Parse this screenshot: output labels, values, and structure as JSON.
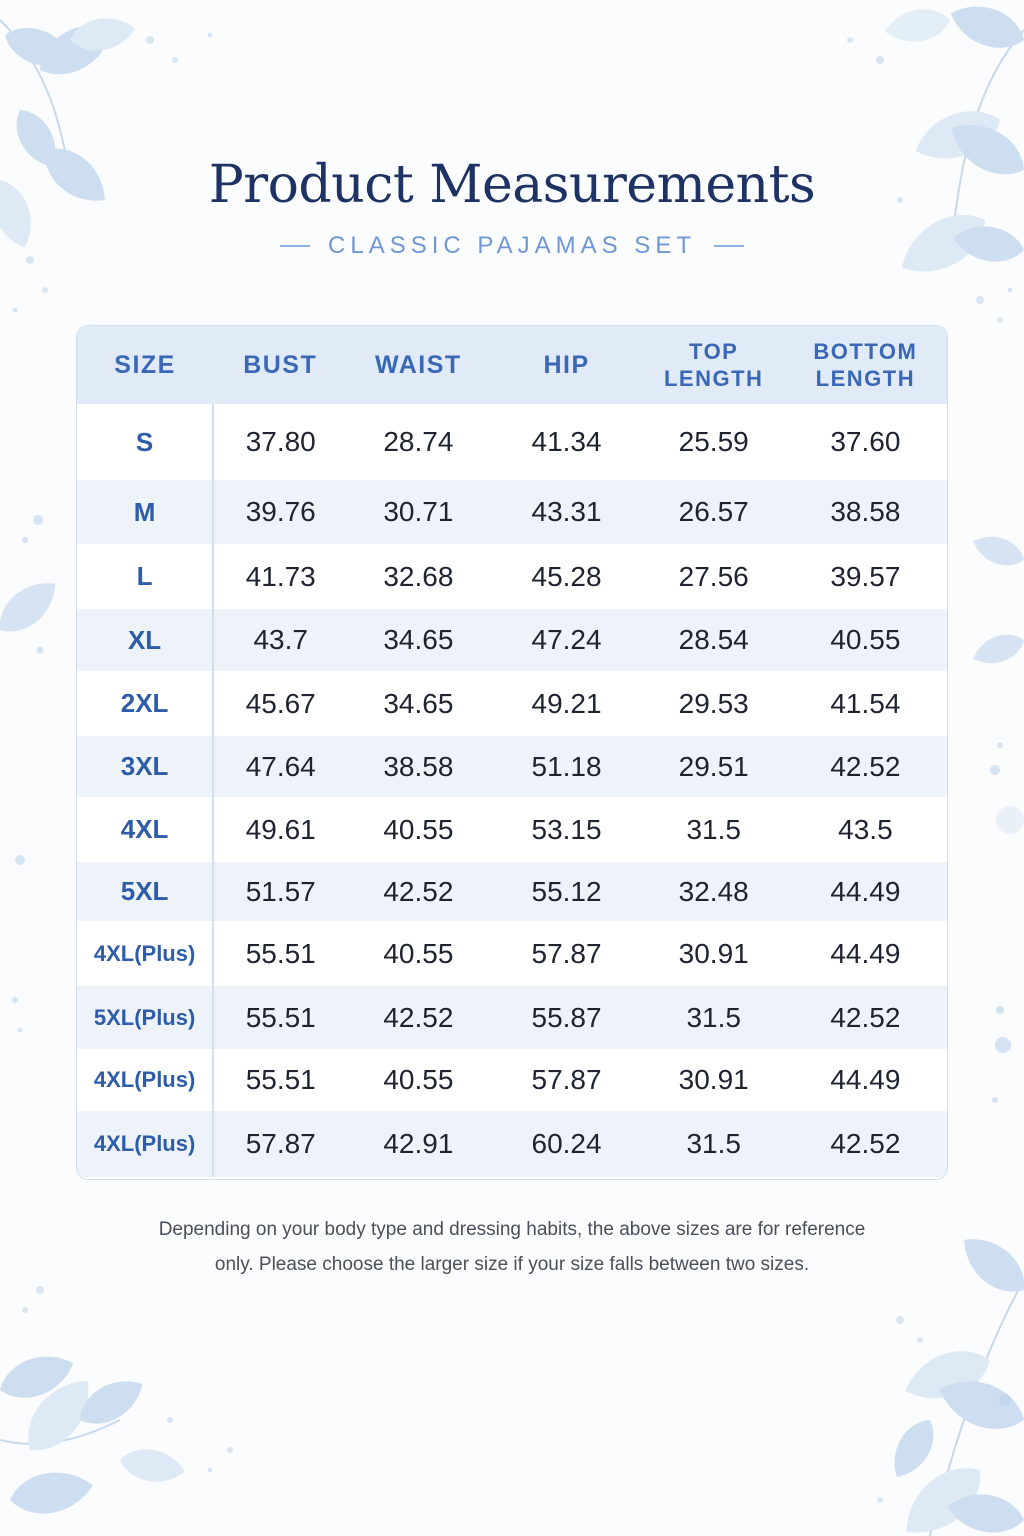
{
  "title": "Product Measurements",
  "subtitle": "CLASSIC PAJAMAS SET",
  "table": {
    "headers": {
      "size": "SIZE",
      "bust": "BUST",
      "waist": "WAIST",
      "hip": "HIP",
      "top_length_1": "TOP",
      "top_length_2": "LENGTH",
      "bottom_length_1": "BOTTOM",
      "bottom_length_2": "LENGTH"
    },
    "rows": [
      {
        "size": "S",
        "bust": "37.80",
        "waist": "28.74",
        "hip": "41.34",
        "top_length": "25.59",
        "bottom_length": "37.60"
      },
      {
        "size": "M",
        "bust": "39.76",
        "waist": "30.71",
        "hip": "43.31",
        "top_length": "26.57",
        "bottom_length": "38.58"
      },
      {
        "size": "L",
        "bust": "41.73",
        "waist": "32.68",
        "hip": "45.28",
        "top_length": "27.56",
        "bottom_length": "39.57"
      },
      {
        "size": "XL",
        "bust": "43.7",
        "waist": "34.65",
        "hip": "47.24",
        "top_length": "28.54",
        "bottom_length": "40.55"
      },
      {
        "size": "2XL",
        "bust": "45.67",
        "waist": "34.65",
        "hip": "49.21",
        "top_length": "29.53",
        "bottom_length": "41.54"
      },
      {
        "size": "3XL",
        "bust": "47.64",
        "waist": "38.58",
        "hip": "51.18",
        "top_length": "29.51",
        "bottom_length": "42.52"
      },
      {
        "size": "4XL",
        "bust": "49.61",
        "waist": "40.55",
        "hip": "53.15",
        "top_length": "31.5",
        "bottom_length": "43.5"
      },
      {
        "size": "5XL",
        "bust": "51.57",
        "waist": "42.52",
        "hip": "55.12",
        "top_length": "32.48",
        "bottom_length": "44.49"
      },
      {
        "size": "4XL(Plus)",
        "bust": "55.51",
        "waist": "40.55",
        "hip": "57.87",
        "top_length": "30.91",
        "bottom_length": "44.49"
      },
      {
        "size": "5XL(Plus)",
        "bust": "55.51",
        "waist": "42.52",
        "hip": "55.87",
        "top_length": "31.5",
        "bottom_length": "42.52"
      },
      {
        "size": "4XL(Plus)",
        "bust": "55.51",
        "waist": "40.55",
        "hip": "57.87",
        "top_length": "30.91",
        "bottom_length": "44.49"
      },
      {
        "size": "4XL(Plus)",
        "bust": "57.87",
        "waist": "42.91",
        "hip": "60.24",
        "top_length": "31.5",
        "bottom_length": "42.52"
      }
    ]
  },
  "note_line1": "Depending on your body type and dressing habits, the above sizes are for reference",
  "note_line2": "only. Please choose the larger size if your size falls between two sizes.",
  "colors": {
    "title": "#1e3264",
    "accent": "#6f97d6",
    "header_bg": "#e0ebf7",
    "size_text": "#2d5da8"
  }
}
